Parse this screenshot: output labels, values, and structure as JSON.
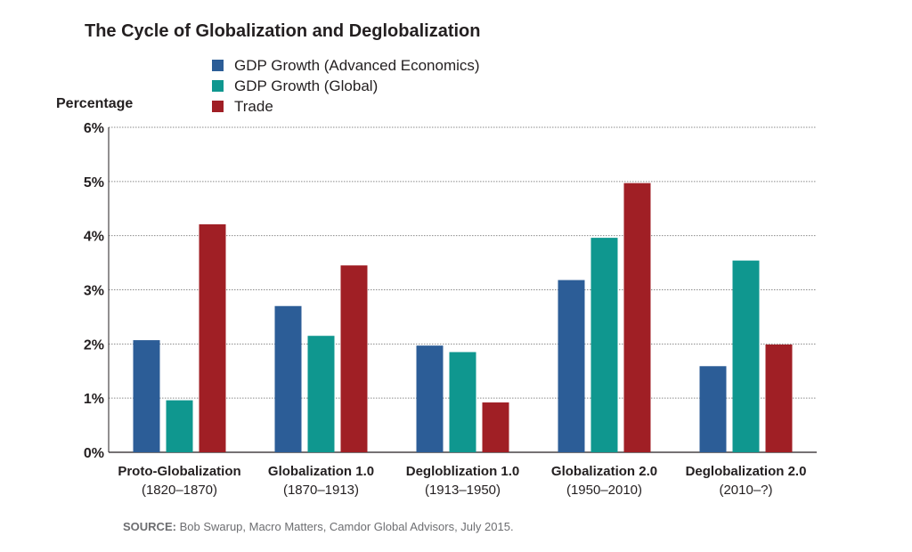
{
  "colors": {
    "advanced": "#2c5d97",
    "global": "#0f978f",
    "trade": "#a01f25",
    "grid": "#8a8a8a",
    "axis": "#231f20"
  },
  "source": {
    "label": "SOURCE:",
    "text": "Bob Swarup, Macro Matters, Camdor Global Advisors, July 2015."
  },
  "chart_data": {
    "type": "bar",
    "title": "The Cycle of Globalization and Deglobalization",
    "ylabel": "Percentage",
    "xlabel": "",
    "ylim": [
      0,
      6
    ],
    "yticks": [
      "0%",
      "1%",
      "2%",
      "3%",
      "4%",
      "5%",
      "6%"
    ],
    "grid": true,
    "legend_position": "top",
    "categories": [
      {
        "name": "Proto-Globalization",
        "period": "(1820–1870)"
      },
      {
        "name": "Globalization 1.0",
        "period": "(1870–1913)"
      },
      {
        "name": "Degloblization 1.0",
        "period": "(1913–1950)"
      },
      {
        "name": "Globalization 2.0",
        "period": "(1950–2010)"
      },
      {
        "name": "Deglobalization 2.0",
        "period": "(2010–?)"
      }
    ],
    "series": [
      {
        "name": "GDP Growth (Advanced Economics)",
        "color": "#2c5d97",
        "values": [
          2.07,
          2.7,
          1.97,
          3.18,
          1.59
        ]
      },
      {
        "name": "GDP Growth (Global)",
        "color": "#0f978f",
        "values": [
          0.96,
          2.15,
          1.85,
          3.96,
          3.54
        ]
      },
      {
        "name": "Trade",
        "color": "#a01f25",
        "values": [
          4.21,
          3.45,
          0.92,
          4.97,
          1.99
        ]
      }
    ]
  }
}
